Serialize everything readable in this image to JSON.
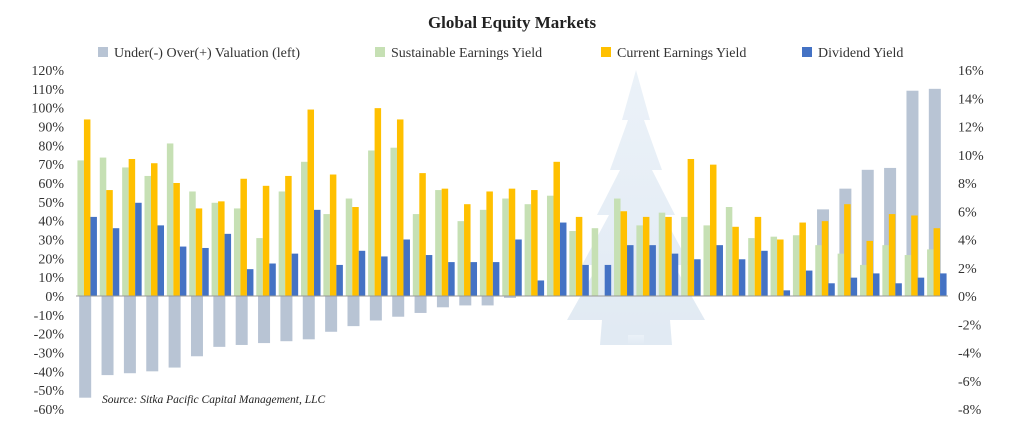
{
  "chart_data": {
    "type": "bar",
    "title": "Global Equity Markets",
    "source": "Source: Sitka Pacific Capital Management, LLC",
    "series": [
      {
        "name": "Under(-) Over(+) Valuation (left)",
        "axis": "left",
        "color": "#b8c4d4",
        "values": [
          -54,
          -42,
          -41,
          -40,
          -38,
          -32,
          -27,
          -26,
          -25,
          -24,
          -23,
          -19,
          -16,
          -13,
          -11,
          -9,
          -6,
          -5,
          -5,
          -1,
          0,
          0,
          0,
          0,
          0,
          0,
          0,
          0,
          0,
          0,
          0,
          0,
          0,
          46,
          57,
          67,
          68,
          109,
          110
        ]
      },
      {
        "name": "Sustainable Earnings Yield",
        "axis": "right",
        "color": "#c6e0b4",
        "values": [
          9.6,
          9.8,
          9.1,
          8.5,
          10.8,
          7.4,
          6.6,
          6.2,
          4.1,
          7.4,
          9.5,
          5.8,
          6.9,
          10.3,
          10.5,
          5.8,
          7.5,
          5.3,
          6.1,
          6.9,
          6.5,
          7.1,
          4.6,
          4.8,
          6.9,
          5.0,
          5.9,
          5.6,
          5.0,
          6.3,
          4.1,
          4.2,
          4.3,
          3.6,
          3.0,
          2.2,
          3.6,
          2.9,
          3.3
        ]
      },
      {
        "name": "Current Earnings Yield",
        "axis": "right",
        "color": "#ffc000",
        "values": [
          12.5,
          7.5,
          9.7,
          9.4,
          8.0,
          6.2,
          6.7,
          8.3,
          7.8,
          8.5,
          13.2,
          8.6,
          6.3,
          13.3,
          12.5,
          8.7,
          7.6,
          6.5,
          7.4,
          7.6,
          7.5,
          9.5,
          5.6,
          0.0,
          6.0,
          5.6,
          5.6,
          9.7,
          9.3,
          4.9,
          5.6,
          4.0,
          5.2,
          5.3,
          6.5,
          3.9,
          5.8,
          5.7,
          4.8
        ]
      },
      {
        "name": "Dividend Yield",
        "axis": "right",
        "color": "#4472c4",
        "values": [
          5.6,
          4.8,
          6.6,
          5.0,
          3.5,
          3.4,
          4.4,
          1.9,
          2.3,
          3.0,
          6.1,
          2.2,
          3.2,
          2.8,
          4.0,
          2.9,
          2.4,
          2.4,
          2.4,
          4.0,
          1.1,
          5.2,
          2.2,
          2.2,
          3.6,
          3.6,
          3.0,
          2.6,
          3.6,
          2.6,
          3.2,
          0.4,
          1.8,
          0.9,
          1.3,
          1.6,
          0.9,
          1.3,
          1.6
        ]
      }
    ],
    "y_left": {
      "min": -60,
      "max": 120,
      "step": 10,
      "suffix": "%"
    },
    "y_right": {
      "min": -8,
      "max": 16,
      "step": 2,
      "suffix": "%"
    },
    "legend_position": "top",
    "grid": false
  }
}
